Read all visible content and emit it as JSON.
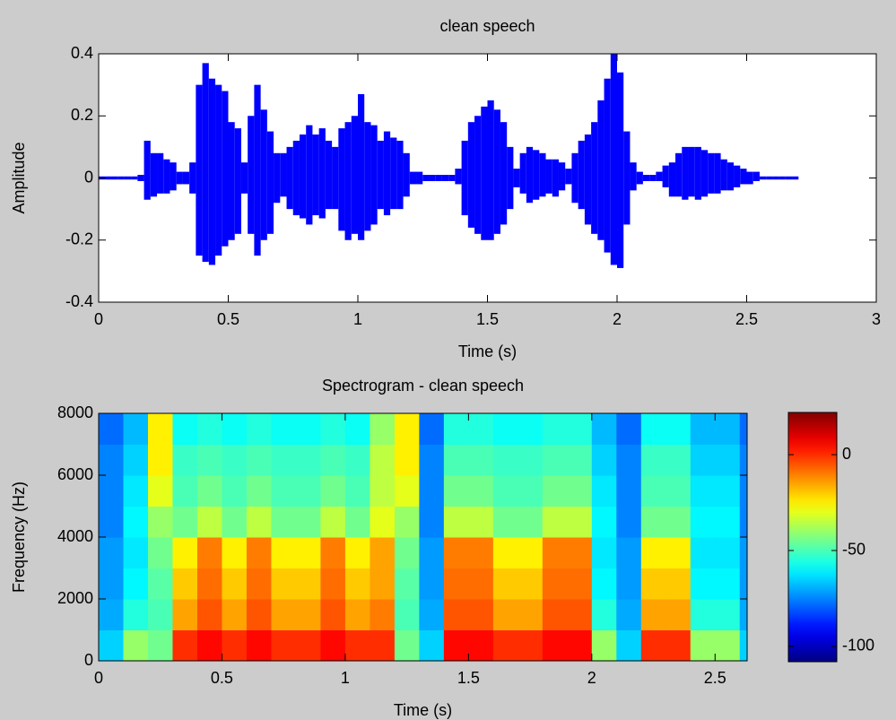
{
  "chart_data": [
    {
      "type": "envelope",
      "title": "clean speech",
      "x_label": "Time (s)",
      "y_label": "Amplitude",
      "color": "#0000ff",
      "xlim": [
        0,
        3
      ],
      "ylim": [
        -0.4,
        0.4
      ],
      "xticks": [
        0,
        0.5,
        1,
        1.5,
        2,
        2.5,
        3
      ],
      "yticks": [
        -0.4,
        -0.2,
        0,
        0.2,
        0.4
      ],
      "x": [
        0,
        0.025,
        0.05,
        0.075,
        0.1,
        0.125,
        0.15,
        0.175,
        0.2,
        0.225,
        0.25,
        0.275,
        0.3,
        0.325,
        0.35,
        0.375,
        0.4,
        0.425,
        0.45,
        0.475,
        0.5,
        0.525,
        0.55,
        0.575,
        0.6,
        0.625,
        0.65,
        0.675,
        0.7,
        0.725,
        0.75,
        0.775,
        0.8,
        0.825,
        0.85,
        0.875,
        0.9,
        0.925,
        0.95,
        0.975,
        1,
        1.025,
        1.05,
        1.075,
        1.1,
        1.125,
        1.15,
        1.175,
        1.2,
        1.225,
        1.25,
        1.275,
        1.3,
        1.325,
        1.35,
        1.375,
        1.4,
        1.425,
        1.45,
        1.475,
        1.5,
        1.525,
        1.55,
        1.575,
        1.6,
        1.625,
        1.65,
        1.675,
        1.7,
        1.725,
        1.75,
        1.775,
        1.8,
        1.825,
        1.85,
        1.875,
        1.9,
        1.925,
        1.95,
        1.975,
        2,
        2.025,
        2.05,
        2.075,
        2.1,
        2.125,
        2.15,
        2.175,
        2.2,
        2.225,
        2.25,
        2.275,
        2.3,
        2.325,
        2.35,
        2.375,
        2.4,
        2.425,
        2.45,
        2.475,
        2.5,
        2.525,
        2.55,
        2.575,
        2.6,
        2.625,
        2.65,
        2.675
      ],
      "upper": [
        0.005,
        0.005,
        0.005,
        0.005,
        0.005,
        0.005,
        0.01,
        0.12,
        0.08,
        0.08,
        0.06,
        0.05,
        0.02,
        0.02,
        0.05,
        0.3,
        0.37,
        0.32,
        0.3,
        0.28,
        0.18,
        0.16,
        0.05,
        0.2,
        0.3,
        0.22,
        0.15,
        0.08,
        0.08,
        0.1,
        0.12,
        0.14,
        0.17,
        0.14,
        0.16,
        0.12,
        0.1,
        0.16,
        0.18,
        0.2,
        0.27,
        0.18,
        0.17,
        0.12,
        0.15,
        0.13,
        0.12,
        0.08,
        0.02,
        0.02,
        0.01,
        0.01,
        0.01,
        0.01,
        0.01,
        0.03,
        0.12,
        0.18,
        0.2,
        0.23,
        0.25,
        0.22,
        0.18,
        0.1,
        0.03,
        0.08,
        0.1,
        0.09,
        0.08,
        0.06,
        0.06,
        0.05,
        0.03,
        0.08,
        0.12,
        0.14,
        0.18,
        0.25,
        0.32,
        0.4,
        0.34,
        0.15,
        0.05,
        0.02,
        0.01,
        0.01,
        0.02,
        0.04,
        0.05,
        0.08,
        0.1,
        0.1,
        0.1,
        0.09,
        0.08,
        0.08,
        0.06,
        0.05,
        0.04,
        0.03,
        0.02,
        0.02,
        0.005,
        0.005,
        0.005,
        0.005,
        0.005,
        0.005
      ],
      "lower": [
        -0.005,
        -0.005,
        -0.005,
        -0.005,
        -0.005,
        -0.005,
        -0.01,
        -0.07,
        -0.06,
        -0.05,
        -0.05,
        -0.04,
        -0.02,
        -0.02,
        -0.05,
        -0.25,
        -0.27,
        -0.28,
        -0.25,
        -0.22,
        -0.2,
        -0.18,
        -0.05,
        -0.18,
        -0.25,
        -0.2,
        -0.18,
        -0.08,
        -0.06,
        -0.1,
        -0.12,
        -0.13,
        -0.15,
        -0.12,
        -0.13,
        -0.1,
        -0.1,
        -0.17,
        -0.2,
        -0.18,
        -0.2,
        -0.17,
        -0.15,
        -0.1,
        -0.12,
        -0.1,
        -0.1,
        -0.06,
        -0.02,
        -0.02,
        -0.01,
        -0.01,
        -0.01,
        -0.01,
        -0.01,
        -0.02,
        -0.12,
        -0.16,
        -0.18,
        -0.2,
        -0.2,
        -0.18,
        -0.15,
        -0.1,
        -0.03,
        -0.05,
        -0.08,
        -0.07,
        -0.06,
        -0.05,
        -0.06,
        -0.04,
        -0.02,
        -0.08,
        -0.1,
        -0.15,
        -0.18,
        -0.2,
        -0.24,
        -0.28,
        -0.29,
        -0.15,
        -0.04,
        -0.02,
        -0.01,
        -0.01,
        -0.01,
        -0.03,
        -0.06,
        -0.06,
        -0.07,
        -0.06,
        -0.07,
        -0.06,
        -0.05,
        -0.05,
        -0.04,
        -0.04,
        -0.03,
        -0.02,
        -0.02,
        -0.01,
        -0.005,
        -0.005,
        -0.005,
        -0.005,
        -0.005,
        -0.005
      ]
    },
    {
      "type": "heatmap",
      "title": "Spectrogram - clean speech",
      "x_label": "Time (s)",
      "y_label": "Frequency (Hz)",
      "colormap": "jet",
      "xlim": [
        0,
        2.63
      ],
      "ylim": [
        0,
        8000
      ],
      "xticks": [
        0,
        0.5,
        1,
        1.5,
        2,
        2.5
      ],
      "yticks": [
        0,
        2000,
        4000,
        6000,
        8000
      ],
      "clim": [
        -108,
        22
      ],
      "cticks": [
        -100,
        -50,
        0
      ],
      "xbins": [
        0,
        0.1,
        0.2,
        0.3,
        0.4,
        0.5,
        0.6,
        0.7,
        0.8,
        0.9,
        1,
        1.1,
        1.2,
        1.3,
        1.4,
        1.5,
        1.6,
        1.7,
        1.8,
        1.9,
        2,
        2.1,
        2.2,
        2.3,
        2.4,
        2.5,
        2.6,
        2.63
      ],
      "ybins": [
        0,
        1000,
        2000,
        3000,
        4000,
        5000,
        6000,
        7000,
        8000
      ],
      "z": [
        [
          -65,
          -40,
          -45,
          0,
          5,
          0,
          5,
          0,
          0,
          5,
          0,
          0,
          -45,
          -65,
          5,
          5,
          0,
          0,
          5,
          5,
          -40,
          -65,
          0,
          0,
          -40,
          -40,
          -65
        ],
        [
          -70,
          -55,
          -50,
          -15,
          -5,
          -15,
          -5,
          -15,
          -15,
          -5,
          -15,
          -10,
          -50,
          -70,
          -5,
          -5,
          -15,
          -15,
          -5,
          -5,
          -55,
          -70,
          -15,
          -15,
          -55,
          -55,
          -70
        ],
        [
          -72,
          -60,
          -48,
          -20,
          -8,
          -20,
          -8,
          -20,
          -20,
          -8,
          -20,
          -15,
          -48,
          -72,
          -8,
          -8,
          -20,
          -20,
          -8,
          -8,
          -60,
          -72,
          -20,
          -20,
          -60,
          -60,
          -72
        ],
        [
          -72,
          -62,
          -45,
          -25,
          -10,
          -25,
          -10,
          -25,
          -25,
          -10,
          -25,
          -15,
          -45,
          -72,
          -10,
          -10,
          -25,
          -25,
          -10,
          -10,
          -62,
          -72,
          -25,
          -25,
          -62,
          -62,
          -72
        ],
        [
          -75,
          -60,
          -40,
          -45,
          -35,
          -45,
          -35,
          -45,
          -45,
          -35,
          -45,
          -30,
          -40,
          -75,
          -35,
          -35,
          -45,
          -45,
          -35,
          -35,
          -60,
          -75,
          -45,
          -45,
          -60,
          -60,
          -75
        ],
        [
          -75,
          -62,
          -30,
          -50,
          -45,
          -50,
          -45,
          -50,
          -50,
          -45,
          -50,
          -35,
          -30,
          -75,
          -45,
          -45,
          -50,
          -50,
          -45,
          -45,
          -62,
          -75,
          -50,
          -50,
          -62,
          -62,
          -75
        ],
        [
          -75,
          -65,
          -25,
          -52,
          -50,
          -52,
          -50,
          -52,
          -52,
          -50,
          -52,
          -35,
          -25,
          -75,
          -50,
          -50,
          -52,
          -52,
          -50,
          -50,
          -65,
          -75,
          -52,
          -52,
          -65,
          -65,
          -75
        ],
        [
          -78,
          -68,
          -25,
          -58,
          -55,
          -58,
          -55,
          -58,
          -58,
          -55,
          -58,
          -40,
          -25,
          -78,
          -55,
          -55,
          -58,
          -58,
          -55,
          -55,
          -68,
          -78,
          -58,
          -58,
          -68,
          -68,
          -78
        ]
      ]
    }
  ]
}
